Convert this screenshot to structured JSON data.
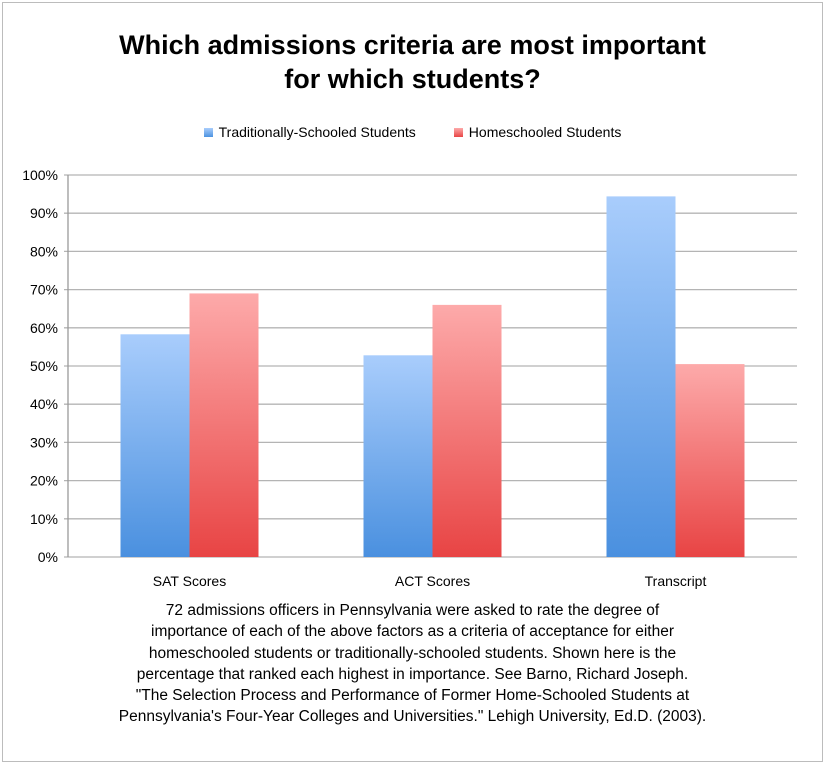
{
  "chart_data": {
    "type": "bar",
    "title_lines": [
      "Which admissions criteria are most important",
      "for which students?"
    ],
    "categories": [
      "SAT Scores",
      "ACT Scores",
      "Transcript"
    ],
    "series": [
      {
        "name": "Traditionally-Schooled Students",
        "values": [
          58.3,
          52.8,
          94.4
        ],
        "color": "#6aa6ec"
      },
      {
        "name": "Homeschooled Students",
        "values": [
          69.0,
          66.0,
          50.5
        ],
        "color": "#f06a6a"
      }
    ],
    "yticks": [
      "0%",
      "10%",
      "20%",
      "30%",
      "40%",
      "50%",
      "60%",
      "70%",
      "80%",
      "90%",
      "100%"
    ],
    "ylim": [
      0,
      100
    ],
    "grid": true,
    "legend": "top",
    "xlabel": "",
    "ylabel": ""
  },
  "caption_lines": [
    "72 admissions officers in Pennsylvania were asked to rate the degree of",
    "importance of each of the above factors as a criteria of acceptance for either",
    "homeschooled students or traditionally-schooled students. Shown here is the",
    "percentage that ranked each highest in importance. See Barno, Richard Joseph.",
    "\"The Selection Process and Performance of Former Home-Schooled Students at",
    "Pennsylvania's Four-Year Colleges and Universities.\" Lehigh University, Ed.D. (2003)."
  ]
}
